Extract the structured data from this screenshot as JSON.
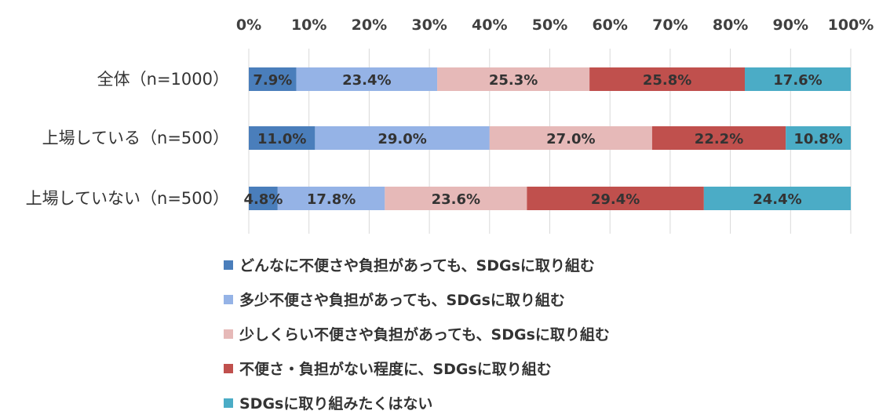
{
  "chart_data": {
    "type": "bar",
    "orientation": "horizontal",
    "stacked": "percent",
    "categories": [
      "全体（n=1000）",
      "上場している（n=500）",
      "上場していない（n=500）"
    ],
    "series": [
      {
        "name": "どんなに不便さや負担があっても、SDGsに取り組む",
        "color": "#4a7ebb",
        "values": [
          7.9,
          11.0,
          4.8
        ],
        "labels": [
          "7.9%",
          "11.0%",
          "4.8%"
        ]
      },
      {
        "name": "多少不便さや負担があっても、SDGsに取り組む",
        "color": "#95b3e6",
        "values": [
          23.4,
          29.0,
          17.8
        ],
        "labels": [
          "23.4%",
          "29.0%",
          "17.8%"
        ]
      },
      {
        "name": "少しくらい不便さや負担があっても、SDGsに取り組む",
        "color": "#e6b9b8",
        "values": [
          25.3,
          27.0,
          23.6
        ],
        "labels": [
          "25.3%",
          "27.0%",
          "23.6%"
        ]
      },
      {
        "name": "不便さ・負担がない程度に、SDGsに取り組む",
        "color": "#c0504d",
        "values": [
          25.8,
          22.2,
          29.4
        ],
        "labels": [
          "25.8%",
          "22.2%",
          "29.4%"
        ]
      },
      {
        "name": "SDGsに取り組みたくはない",
        "color": "#4bacc6",
        "values": [
          17.6,
          10.8,
          24.4
        ],
        "labels": [
          "17.6%",
          "10.8%",
          "24.4%"
        ]
      }
    ],
    "xlim": [
      0,
      100
    ],
    "x_ticks": [
      "0%",
      "10%",
      "20%",
      "30%",
      "40%",
      "50%",
      "60%",
      "70%",
      "80%",
      "90%",
      "100%"
    ],
    "x_axis_position": "top",
    "grid": true,
    "legend_position": "bottom"
  }
}
